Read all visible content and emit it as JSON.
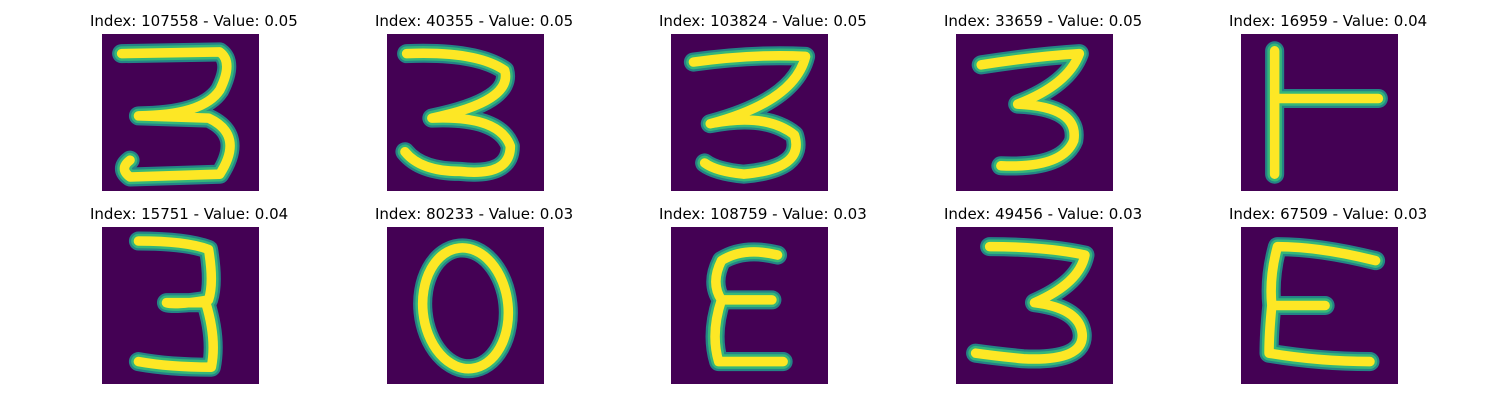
{
  "colors": {
    "background": "#440154",
    "stroke_core": "#fde725",
    "stroke_edge": "#35b779",
    "stroke_halo": "#21918c"
  },
  "panels": [
    {
      "index": "107558",
      "value": "0.05",
      "title": "Index: 107558 - Value: 0.05",
      "glyph": "3"
    },
    {
      "index": "40355",
      "value": "0.05",
      "title": "Index: 40355 - Value: 0.05",
      "glyph": "3"
    },
    {
      "index": "103824",
      "value": "0.05",
      "title": "Index: 103824 - Value: 0.05",
      "glyph": "3"
    },
    {
      "index": "33659",
      "value": "0.05",
      "title": "Index: 33659 - Value: 0.05",
      "glyph": "3"
    },
    {
      "index": "16959",
      "value": "0.04",
      "title": "Index: 16959 - Value: 0.04",
      "glyph": "T-rotated"
    },
    {
      "index": "15751",
      "value": "0.04",
      "title": "Index: 15751 - Value: 0.04",
      "glyph": "3"
    },
    {
      "index": "80233",
      "value": "0.03",
      "title": "Index: 80233 - Value: 0.03",
      "glyph": "0"
    },
    {
      "index": "108759",
      "value": "0.03",
      "title": "Index: 108759 - Value: 0.03",
      "glyph": "E-mirrored"
    },
    {
      "index": "49456",
      "value": "0.03",
      "title": "Index: 49456 - Value: 0.03",
      "glyph": "3"
    },
    {
      "index": "67509",
      "value": "0.03",
      "title": "Index: 67509 - Value: 0.03",
      "glyph": "E"
    }
  ]
}
